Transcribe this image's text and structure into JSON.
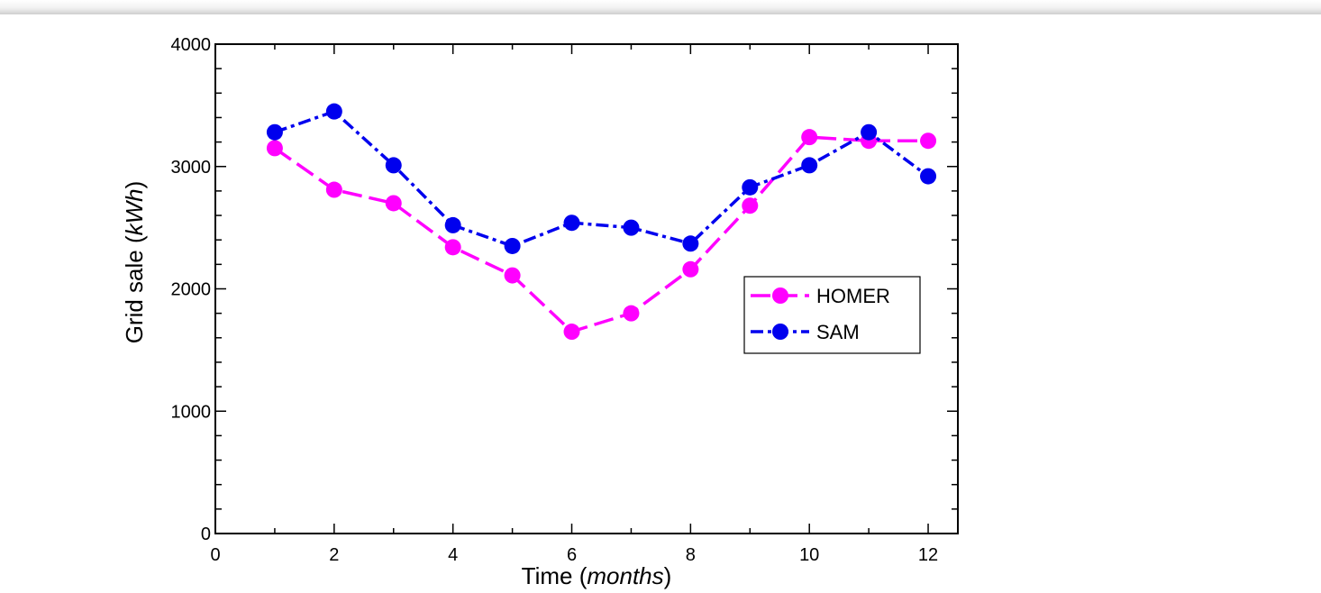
{
  "chart_data": {
    "type": "line",
    "xlabel_main": "Time (",
    "xlabel_italic": "months",
    "xlabel_end": ")",
    "ylabel_main": "Grid sale (",
    "ylabel_italic": "kWh",
    "ylabel_end": ")",
    "xlim": [
      0,
      12.5
    ],
    "ylim": [
      0,
      4000
    ],
    "xticks": [
      0,
      2,
      4,
      6,
      8,
      10,
      12
    ],
    "yticks": [
      0,
      1000,
      2000,
      3000,
      4000
    ],
    "grid": false,
    "legend_position": "right",
    "x": [
      1,
      2,
      3,
      4,
      5,
      6,
      7,
      8,
      9,
      10,
      11,
      12
    ],
    "series": [
      {
        "name": "HOMER",
        "color": "#ff00ff",
        "dash": "long-dash",
        "values": [
          3150,
          2810,
          2700,
          2340,
          2110,
          1650,
          1800,
          2160,
          2680,
          3240,
          3210,
          3210
        ]
      },
      {
        "name": "SAM",
        "color": "#0000ee",
        "dash": "dash-dot",
        "values": [
          3280,
          3450,
          3010,
          2520,
          2350,
          2540,
          2500,
          2370,
          2830,
          3010,
          3280,
          2920
        ]
      }
    ]
  }
}
